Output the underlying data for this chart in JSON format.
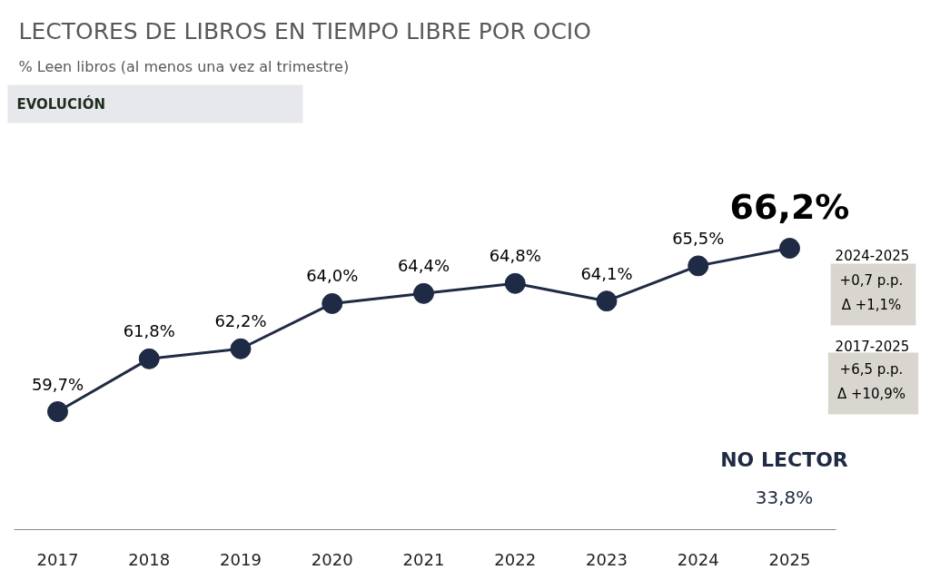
{
  "chart_data": {
    "type": "line",
    "title": "LECTORES DE LIBROS EN TIEMPO LIBRE POR OCIO",
    "subtitle": "% Leen libros (al menos una vez al trimestre)",
    "categories": [
      "2017",
      "2018",
      "2019",
      "2020",
      "2021",
      "2022",
      "2023",
      "2024",
      "2025"
    ],
    "series": [
      {
        "color": "#1f2a44",
        "values": [
          59.7,
          61.8,
          62.2,
          64.0,
          64.4,
          64.8,
          64.1,
          65.5,
          66.2
        ],
        "value_labels": [
          "59,7%",
          "61,8%",
          "62,2%",
          "64,0%",
          "64,4%",
          "64,8%",
          "64,1%",
          "65,5%",
          "66,2%"
        ]
      }
    ],
    "marker": "circle",
    "line_style": "solid",
    "grid": false,
    "annotations": [
      "EVOLUCIÓN",
      "2024-2025",
      "+0,7 p.p.",
      "Δ +1,1%",
      "2017-2025",
      "+6,5 p.p.",
      "Δ +10,9%",
      "NO LECTOR",
      "33,8%"
    ]
  }
}
